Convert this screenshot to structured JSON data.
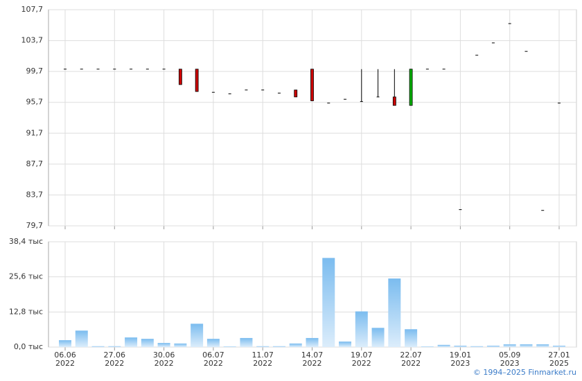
{
  "chart_data": [
    {
      "type": "candlestick",
      "ylim": [
        79.7,
        107.7
      ],
      "yticks": [
        {
          "value": 79.7,
          "label": "79,7"
        },
        {
          "value": 83.7,
          "label": "83,7"
        },
        {
          "value": 87.7,
          "label": "87,7"
        },
        {
          "value": 91.7,
          "label": "91,7"
        },
        {
          "value": 95.7,
          "label": "95,7"
        },
        {
          "value": 99.7,
          "label": "99,7"
        },
        {
          "value": 103.7,
          "label": "103,7"
        },
        {
          "value": 107.7,
          "label": "107,7"
        }
      ],
      "up_color": "#00b000",
      "down_color": "#cc0000",
      "open": [
        100,
        100,
        100,
        100,
        100,
        100,
        100,
        100,
        100,
        97.0,
        96.8,
        97.3,
        97.3,
        96.9,
        97.3,
        100,
        95.6,
        96.1,
        95.8,
        96.4,
        96.4,
        95.3,
        100,
        100,
        81.8,
        101.8,
        103.4,
        105.9,
        102.3,
        81.7,
        95.6
      ],
      "high": [
        100,
        100,
        100,
        100,
        100,
        100,
        100,
        100,
        100,
        97.0,
        96.8,
        97.3,
        97.3,
        96.9,
        97.3,
        100,
        95.6,
        96.1,
        100,
        100,
        100,
        100,
        100,
        100,
        81.8,
        101.8,
        103.4,
        105.9,
        102.3,
        81.7,
        95.6
      ],
      "low": [
        100,
        100,
        100,
        100,
        100,
        100,
        100,
        98.0,
        97.1,
        97.0,
        96.8,
        97.3,
        97.3,
        96.9,
        96.4,
        95.9,
        95.6,
        96.1,
        95.8,
        96.4,
        95.3,
        95.3,
        100,
        100,
        81.8,
        101.8,
        103.4,
        105.9,
        102.3,
        81.7,
        95.6
      ],
      "close": [
        100,
        100,
        100,
        100,
        100,
        100,
        100,
        98.0,
        97.1,
        97.0,
        96.8,
        97.3,
        97.3,
        96.9,
        96.4,
        95.9,
        95.6,
        96.1,
        95.8,
        96.4,
        95.3,
        100,
        100,
        100,
        81.8,
        101.8,
        103.4,
        105.9,
        102.3,
        81.7,
        95.6
      ]
    },
    {
      "type": "bar",
      "categories": [
        "06.06 2022",
        null,
        null,
        "27.06 2022",
        null,
        null,
        "30.06 2022",
        null,
        null,
        "06.07 2022",
        null,
        null,
        "11.07 2022",
        null,
        null,
        "14.07 2022",
        null,
        null,
        "19.07 2022",
        null,
        null,
        "22.07 2022",
        null,
        null,
        "19.01 2023",
        null,
        null,
        "05.09 2023",
        null,
        null,
        "27.01 2025"
      ],
      "values": [
        2.5,
        6,
        0.3,
        0.3,
        3.5,
        3,
        1.5,
        1.3,
        8.5,
        3,
        0.2,
        3.3,
        0.3,
        0.3,
        1.3,
        3.3,
        32.5,
        2,
        13,
        7,
        25,
        6.5,
        0.2,
        0.8,
        0.5,
        0.3,
        0.5,
        1,
        1,
        1,
        0.5
      ],
      "ylim": [
        0,
        38.4
      ],
      "yticks": [
        {
          "value": 0,
          "label": "0,0 тыс"
        },
        {
          "value": 12.8,
          "label": "12,8 тыс"
        },
        {
          "value": 25.6,
          "label": "25,6 тыс"
        },
        {
          "value": 38.4,
          "label": "38,4 тыс"
        }
      ],
      "color": "#7bbcef"
    }
  ],
  "footer": "© 1994–2025 Finmarket.ru"
}
